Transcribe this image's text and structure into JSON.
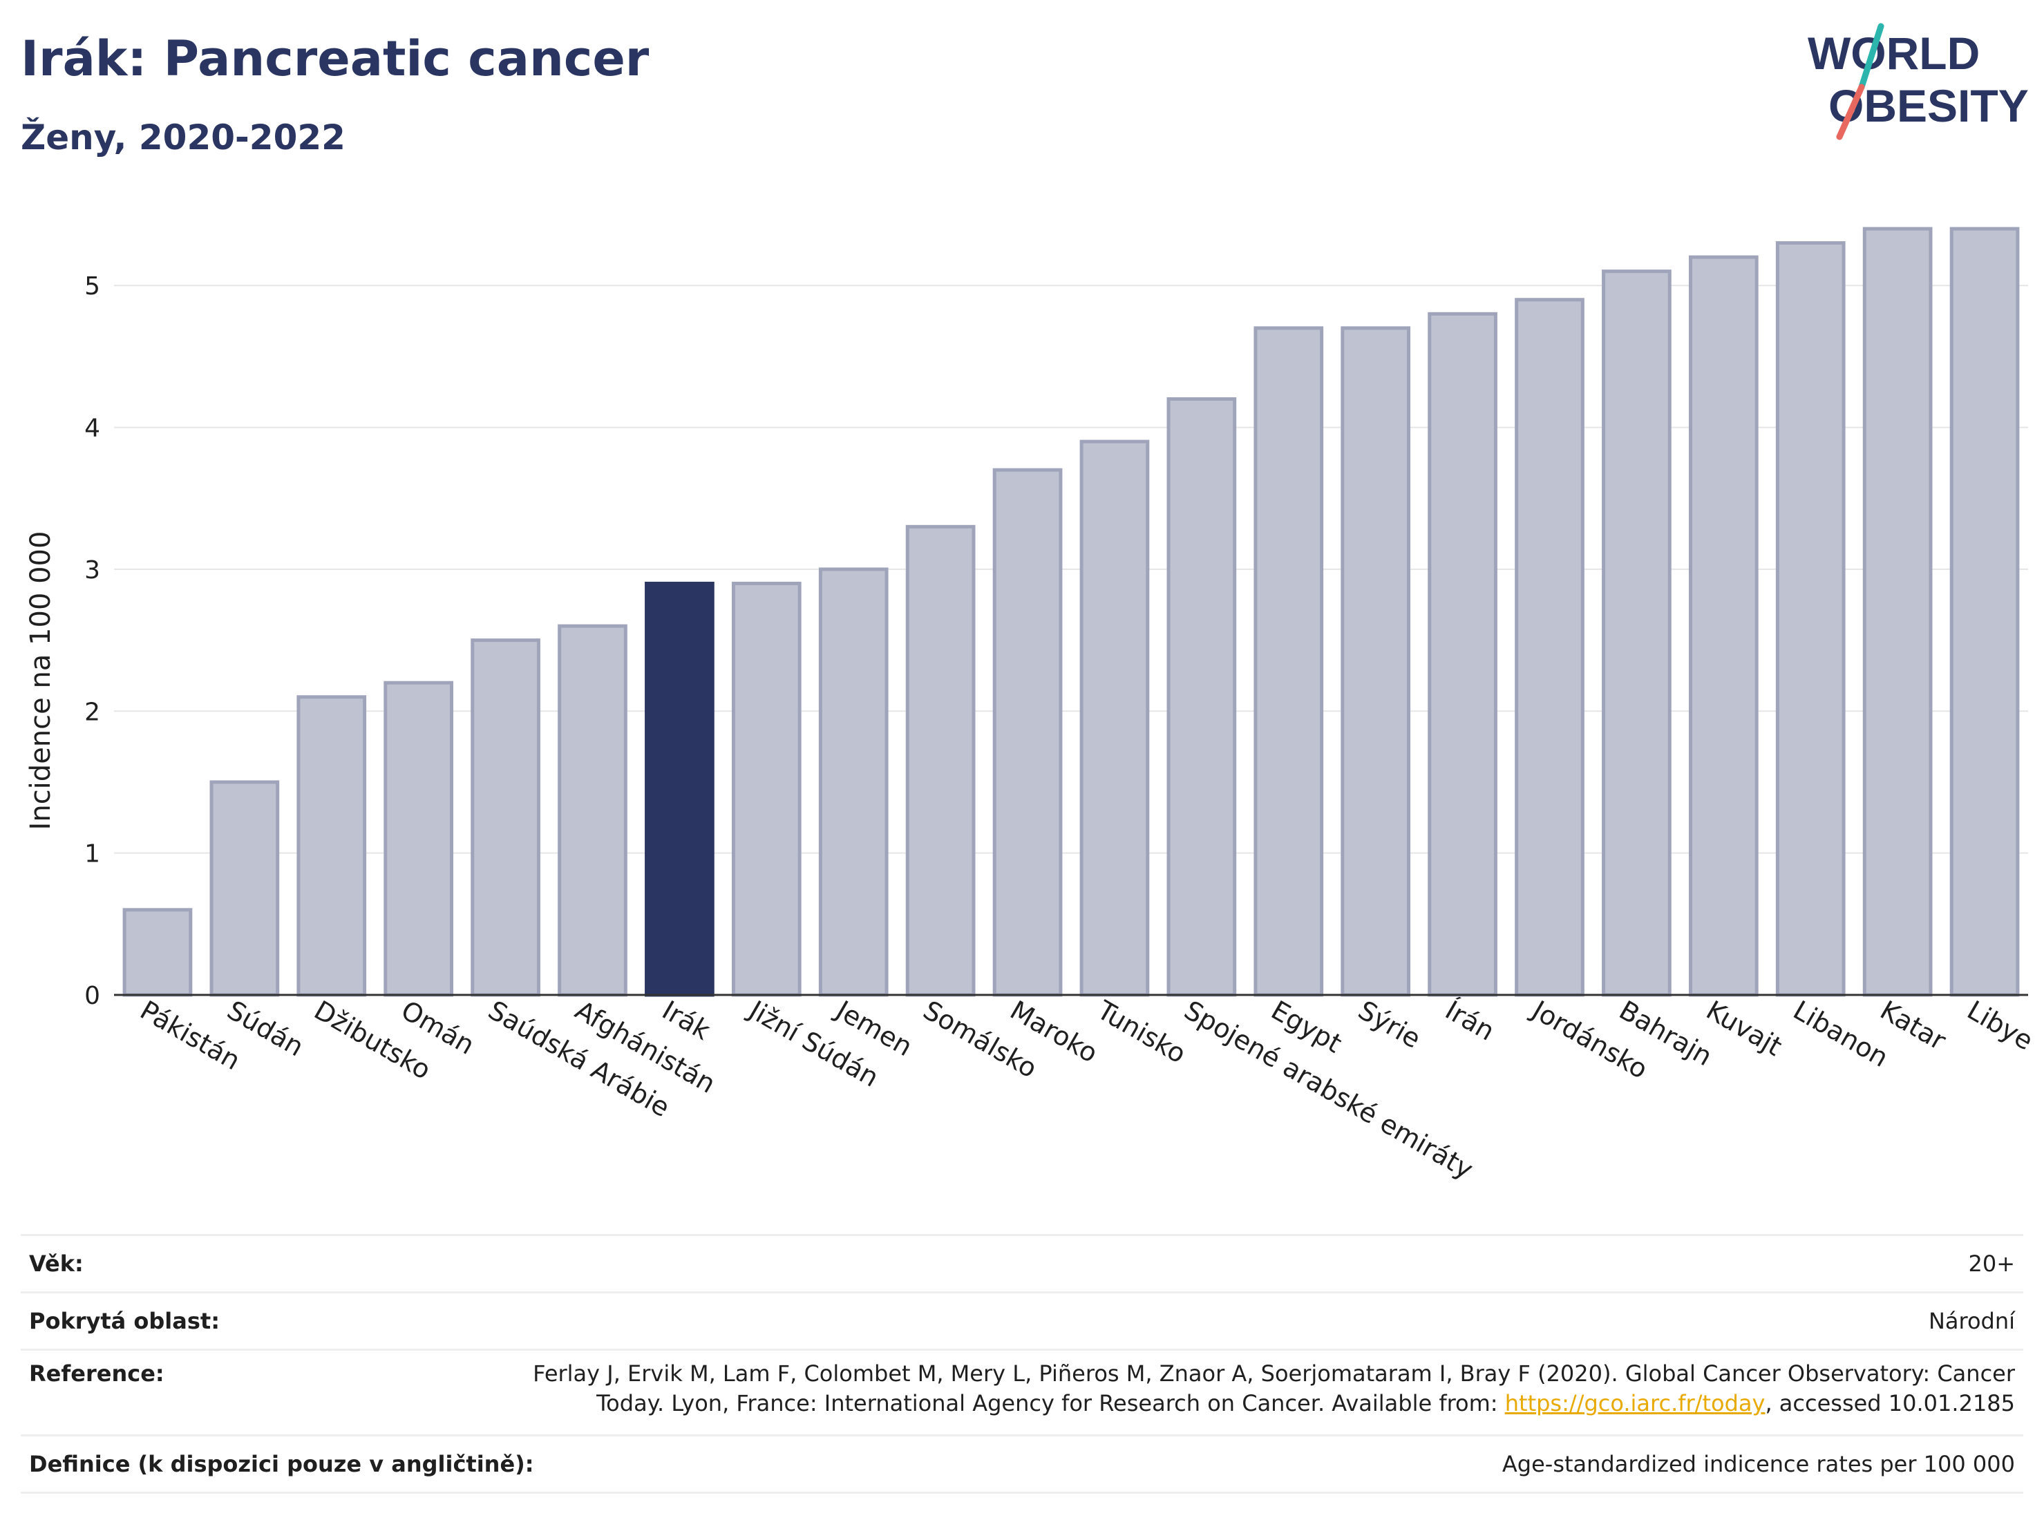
{
  "header": {
    "title": "Irák: Pancreatic cancer",
    "subtitle": "Ženy, 2020-2022"
  },
  "logo": {
    "line1": "WORLD",
    "line2": "OBESITY",
    "colors": {
      "text": "#2a3562",
      "slash_top": "#2bb5ad",
      "slash_bottom": "#e8675f"
    }
  },
  "chart_data": {
    "type": "bar",
    "title": "Irák: Pancreatic cancer",
    "subtitle": "Ženy, 2020-2022",
    "ylabel": "Incidence na 100 000",
    "xlabel": "",
    "ylim": [
      0,
      5.6
    ],
    "yticks": [
      0,
      1,
      2,
      3,
      4,
      5
    ],
    "grid": true,
    "highlight": "Irák",
    "colors": {
      "bar": "#bfc2d0",
      "bar_edge": "#9fa4bb",
      "highlight": "#2a3562"
    },
    "categories": [
      "Pákistán",
      "Súdán",
      "Džibutsko",
      "Omán",
      "Saúdská Arábie",
      "Afghánistán",
      "Irák",
      "Jižní Súdán",
      "Jemen",
      "Somálsko",
      "Maroko",
      "Tunisko",
      "Spojené arabské emiráty",
      "Egypt",
      "Sýrie",
      "Írán",
      "Jordánsko",
      "Bahrajn",
      "Kuvajt",
      "Libanon",
      "Katar",
      "Libye"
    ],
    "values": [
      0.6,
      1.5,
      2.1,
      2.2,
      2.5,
      2.6,
      2.9,
      2.9,
      3.0,
      3.3,
      3.7,
      3.9,
      4.2,
      4.7,
      4.7,
      4.8,
      4.9,
      5.1,
      5.2,
      5.3,
      5.4,
      5.4
    ]
  },
  "info": {
    "age_label": "Věk:",
    "age_value": "20+",
    "area_label": "Pokrytá oblast:",
    "area_value": "Národní",
    "ref_label": "Reference:",
    "ref_line1": "Ferlay J, Ervik M, Lam F, Colombet M, Mery L, Piñeros M, Znaor A, Soerjomataram I, Bray F (2020). Global Cancer Observatory: Cancer",
    "ref_line2_pre": "Today. Lyon, France: International Agency for Research on Cancer. Available from: ",
    "ref_link": "https://gco.iarc.fr/today",
    "ref_line2_post": ", accessed 10.01.2185",
    "def_label": "Definice (k dispozici pouze v angličtině):",
    "def_value": "Age-standardized indicence rates per 100 000"
  }
}
